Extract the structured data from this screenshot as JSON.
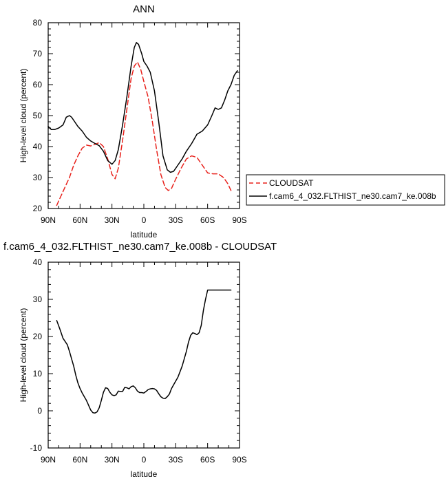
{
  "chart_data": [
    {
      "type": "line",
      "title": "ANN",
      "xlabel": "latitude",
      "ylabel": "High-level cloud (percent)",
      "xlim": [
        -90,
        90
      ],
      "ylim": [
        20,
        80
      ],
      "x_ticks": [
        {
          "value": -90,
          "label": "90N"
        },
        {
          "value": -60,
          "label": "60N"
        },
        {
          "value": -30,
          "label": "30N"
        },
        {
          "value": 0,
          "label": "0"
        },
        {
          "value": 30,
          "label": "30S"
        },
        {
          "value": 60,
          "label": "60S"
        },
        {
          "value": 90,
          "label": "90S"
        }
      ],
      "y_ticks": [
        20,
        30,
        40,
        50,
        60,
        70,
        80
      ],
      "legend_position": "right",
      "series": [
        {
          "name": "CLOUDSAT",
          "color": "#e8211b",
          "dash": "dashed",
          "x": [
            -82,
            -78,
            -74,
            -70,
            -66,
            -62,
            -58,
            -54,
            -50,
            -46,
            -42,
            -38,
            -34,
            -30,
            -27,
            -24,
            -20,
            -16,
            -12,
            -9,
            -6,
            -3,
            0,
            4,
            8,
            12,
            16,
            20,
            23,
            26,
            30,
            35,
            40,
            45,
            50,
            55,
            60,
            65,
            70,
            75,
            79,
            82
          ],
          "y": [
            21,
            24,
            27,
            30,
            34,
            37,
            39.5,
            40.5,
            40.2,
            40.7,
            41.3,
            40,
            36,
            31,
            29.6,
            33,
            42,
            52,
            62,
            66,
            67.3,
            65,
            61,
            56,
            48,
            39,
            31,
            26.8,
            25.8,
            26.5,
            29.5,
            33,
            36,
            37,
            36.5,
            34,
            31.5,
            31.2,
            31.2,
            30,
            28,
            25.8
          ]
        },
        {
          "name": "f.cam6_4_032.FLTHIST_ne30.cam7_ke.008b",
          "color": "#000000",
          "dash": "solid",
          "x": [
            -90,
            -87,
            -84,
            -80,
            -76,
            -73,
            -70,
            -68,
            -65,
            -62,
            -58,
            -54,
            -50,
            -46,
            -42,
            -38,
            -34,
            -30,
            -27,
            -24,
            -20,
            -16,
            -12,
            -9,
            -7,
            -5,
            -2,
            0,
            3,
            6,
            10,
            14,
            18,
            22,
            25,
            28,
            32,
            36,
            40,
            45,
            50,
            55,
            60,
            64,
            67,
            70,
            73,
            76,
            79,
            82,
            85,
            88
          ],
          "y": [
            46.5,
            45.5,
            45.5,
            46,
            47,
            49.5,
            50,
            49.5,
            48,
            46.5,
            45,
            43,
            41.8,
            41,
            40.3,
            38.5,
            35.5,
            34.3,
            35.5,
            39,
            47,
            56,
            66,
            72,
            73.6,
            73,
            70,
            67.5,
            66,
            64,
            58,
            48,
            37,
            32.5,
            31.7,
            32,
            34,
            36,
            38.5,
            41,
            44,
            45,
            47,
            50,
            52.5,
            52,
            52.5,
            55,
            58,
            60,
            63,
            64.5
          ]
        }
      ]
    },
    {
      "type": "line",
      "title": "f.cam6_4_032.FLTHIST_ne30.cam7_ke.008b - CLOUDSAT",
      "xlabel": "latitude",
      "ylabel": "High-level cloud (percent)",
      "xlim": [
        -90,
        90
      ],
      "ylim": [
        -10,
        40
      ],
      "x_ticks": [
        {
          "value": -90,
          "label": "90N"
        },
        {
          "value": -60,
          "label": "60N"
        },
        {
          "value": -30,
          "label": "30N"
        },
        {
          "value": 0,
          "label": "0"
        },
        {
          "value": 30,
          "label": "30S"
        },
        {
          "value": 60,
          "label": "60S"
        },
        {
          "value": 90,
          "label": "90S"
        }
      ],
      "y_ticks": [
        -10,
        0,
        10,
        20,
        30,
        40
      ],
      "series": [
        {
          "color": "#000000",
          "dash": "solid",
          "x": [
            -82,
            -79,
            -76,
            -72,
            -70,
            -68,
            -66,
            -64,
            -62,
            -60,
            -58,
            -56,
            -54,
            -52,
            -50,
            -48,
            -46,
            -44,
            -42,
            -40,
            -38,
            -36,
            -34,
            -32,
            -30,
            -28,
            -26,
            -24,
            -22,
            -20,
            -18,
            -16,
            -14,
            -12,
            -10,
            -8,
            -6,
            -4,
            -2,
            0,
            2,
            4,
            6,
            8,
            10,
            12,
            14,
            16,
            18,
            20,
            22,
            24,
            26,
            28,
            30,
            32,
            34,
            36,
            38,
            40,
            42,
            44,
            46,
            48,
            50,
            52,
            54,
            56,
            58,
            60,
            62,
            64,
            66,
            68,
            70,
            72,
            74,
            76,
            78,
            80,
            82
          ],
          "y": [
            24.3,
            22,
            19.5,
            17.8,
            16,
            14,
            12,
            9.5,
            7.5,
            6,
            4.8,
            3.8,
            2.8,
            1.5,
            0.2,
            -0.5,
            -0.6,
            -0.3,
            0.8,
            2.8,
            5,
            6.2,
            6,
            5,
            4.3,
            4.1,
            4.3,
            5.3,
            5.2,
            5.2,
            6.3,
            6.2,
            5.9,
            6.5,
            6.7,
            6.2,
            5.3,
            4.9,
            4.9,
            4.8,
            5.2,
            5.7,
            5.9,
            6,
            5.9,
            5.5,
            4.6,
            3.8,
            3.4,
            3.3,
            3.8,
            4.5,
            6,
            7,
            8,
            9,
            10.5,
            12,
            14,
            16,
            18.5,
            20.3,
            21,
            20.8,
            20.5,
            21,
            23,
            27,
            30,
            32.5,
            32.5,
            32.5,
            32.5,
            32.5,
            32.5,
            32.5,
            32.5,
            32.5,
            32.5,
            32.5,
            32.5
          ]
        }
      ]
    }
  ]
}
